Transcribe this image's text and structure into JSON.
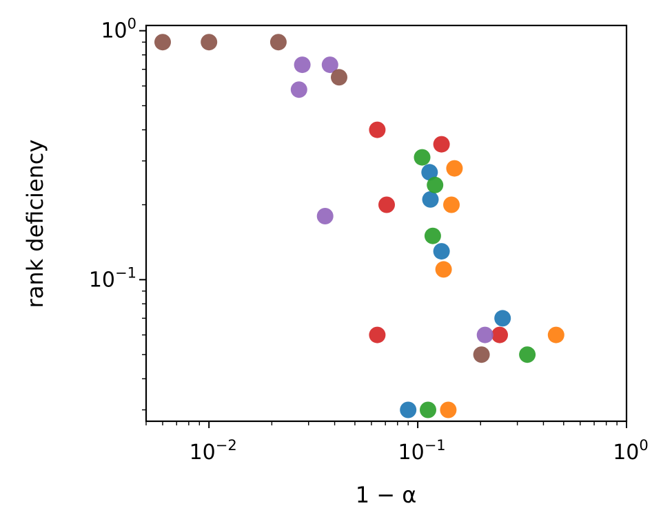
{
  "chart_data": {
    "type": "scatter",
    "title": "",
    "xlabel": "1 − α",
    "ylabel": "rank deficiency",
    "xscale": "log",
    "yscale": "log",
    "xlim": [
      0.005,
      1.0
    ],
    "ylim": [
      0.027,
      1.05
    ],
    "grid": false,
    "x_ticks": [
      {
        "value": 0.01,
        "base": "10",
        "exp": "−2"
      },
      {
        "value": 0.1,
        "base": "10",
        "exp": "−1"
      },
      {
        "value": 1.0,
        "base": "10",
        "exp": "0"
      }
    ],
    "y_ticks": [
      {
        "value": 0.1,
        "base": "10",
        "exp": "−1"
      },
      {
        "value": 1.0,
        "base": "10",
        "exp": "0"
      }
    ],
    "series": [
      {
        "color": "#1f77b4",
        "points": [
          [
            0.114,
            0.27
          ],
          [
            0.115,
            0.21
          ],
          [
            0.13,
            0.13
          ],
          [
            0.255,
            0.07
          ],
          [
            0.09,
            0.03
          ]
        ]
      },
      {
        "color": "#ff7f0e",
        "points": [
          [
            0.15,
            0.28
          ],
          [
            0.145,
            0.2
          ],
          [
            0.133,
            0.11
          ],
          [
            0.46,
            0.06
          ],
          [
            0.14,
            0.03
          ]
        ]
      },
      {
        "color": "#2ca02c",
        "points": [
          [
            0.105,
            0.31
          ],
          [
            0.121,
            0.24
          ],
          [
            0.118,
            0.15
          ],
          [
            0.335,
            0.05
          ],
          [
            0.112,
            0.03
          ]
        ]
      },
      {
        "color": "#d62728",
        "points": [
          [
            0.064,
            0.4
          ],
          [
            0.13,
            0.35
          ],
          [
            0.071,
            0.2
          ],
          [
            0.064,
            0.06
          ],
          [
            0.247,
            0.06
          ]
        ]
      },
      {
        "color": "#9467bd",
        "points": [
          [
            0.028,
            0.73
          ],
          [
            0.038,
            0.73
          ],
          [
            0.027,
            0.58
          ],
          [
            0.036,
            0.18
          ],
          [
            0.21,
            0.06
          ]
        ]
      },
      {
        "color": "#8c564b",
        "points": [
          [
            0.006,
            0.9
          ],
          [
            0.01,
            0.9
          ],
          [
            0.0215,
            0.9
          ],
          [
            0.042,
            0.65
          ],
          [
            0.202,
            0.05
          ]
        ]
      }
    ]
  }
}
